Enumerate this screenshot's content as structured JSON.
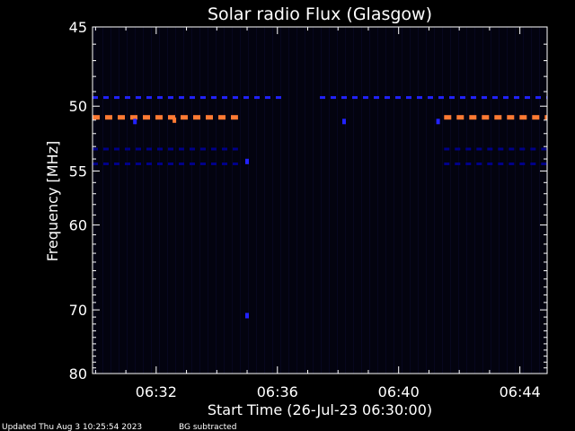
{
  "chart_data": {
    "type": "heatmap",
    "title": "Solar radio Flux (Glasgow)",
    "xlabel": "Start Time (26-Jul-23 06:30:00)",
    "ylabel": "Frequency [MHz]",
    "x_tick_labels": [
      "06:32",
      "06:36",
      "06:40",
      "06:44"
    ],
    "x_tick_minutes": [
      2,
      6,
      10,
      14
    ],
    "xlim_minutes": [
      -0.1,
      14.9
    ],
    "y_tick_values": [
      45,
      50,
      55,
      60,
      70,
      80
    ],
    "ylim": [
      45,
      80
    ],
    "y_scale": "reciprocal",
    "grid": false,
    "colors": {
      "background": "#000000",
      "plot_background": "#03030f",
      "axes": "#ffffff",
      "low": "#000088",
      "mid": "#2222ff",
      "high": "#ff7a33"
    },
    "bands": [
      {
        "mhz": 50.8,
        "level": "high",
        "segments": [
          [
            -0.1,
            4.7
          ],
          [
            11.5,
            14.9
          ]
        ]
      },
      {
        "mhz": 49.4,
        "level": "mid",
        "segments": [
          [
            -0.1,
            6.2
          ],
          [
            7.4,
            14.9
          ]
        ]
      },
      {
        "mhz": 53.2,
        "level": "low",
        "segments": [
          [
            -0.1,
            4.7
          ],
          [
            11.5,
            14.9
          ]
        ]
      },
      {
        "mhz": 54.4,
        "level": "low",
        "segments": [
          [
            -0.1,
            4.7
          ],
          [
            11.5,
            14.9
          ]
        ]
      }
    ],
    "spots": [
      {
        "minute": 2.6,
        "mhz": 51.0,
        "level": "high"
      },
      {
        "minute": 5.0,
        "mhz": 70.8,
        "level": "mid"
      },
      {
        "minute": 5.0,
        "mhz": 54.2,
        "level": "mid"
      },
      {
        "minute": 8.2,
        "mhz": 51.1,
        "level": "mid"
      },
      {
        "minute": 11.3,
        "mhz": 51.1,
        "level": "mid"
      },
      {
        "minute": 1.3,
        "mhz": 51.1,
        "level": "mid"
      }
    ]
  },
  "footer": {
    "updated": "Updated Thu Aug  3 10:25:54 2023",
    "note": "BG subtracted"
  }
}
